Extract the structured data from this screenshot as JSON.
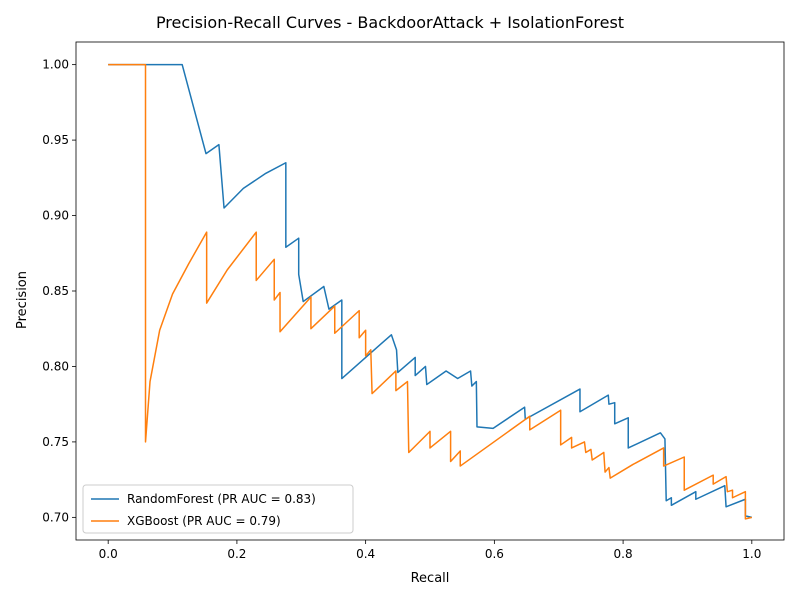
{
  "chart_data": {
    "type": "line",
    "title": "Precision-Recall Curves - BackdoorAttack + IsolationForest",
    "xlabel": "Recall",
    "ylabel": "Precision",
    "xlim": [
      -0.05,
      1.05
    ],
    "ylim": [
      0.685,
      1.015
    ],
    "xticks": [
      0.0,
      0.2,
      0.4,
      0.6,
      0.8,
      1.0
    ],
    "xtick_labels": [
      "0.0",
      "0.2",
      "0.4",
      "0.6",
      "0.8",
      "1.0"
    ],
    "yticks": [
      0.7,
      0.75,
      0.8,
      0.85,
      0.9,
      0.95,
      1.0
    ],
    "ytick_labels": [
      "0.70",
      "0.75",
      "0.80",
      "0.85",
      "0.90",
      "0.95",
      "1.00"
    ],
    "grid": false,
    "legend": {
      "position": "lower-left"
    },
    "series": [
      {
        "name": "RandomForest (PR AUC = 0.83)",
        "color": "#1f77b4",
        "points": [
          [
            0.0,
            1.0
          ],
          [
            0.115,
            1.0
          ],
          [
            0.152,
            0.941
          ],
          [
            0.172,
            0.947
          ],
          [
            0.18,
            0.905
          ],
          [
            0.21,
            0.918
          ],
          [
            0.245,
            0.928
          ],
          [
            0.276,
            0.935
          ],
          [
            0.276,
            0.879
          ],
          [
            0.296,
            0.885
          ],
          [
            0.296,
            0.861
          ],
          [
            0.303,
            0.843
          ],
          [
            0.335,
            0.853
          ],
          [
            0.343,
            0.838
          ],
          [
            0.363,
            0.844
          ],
          [
            0.363,
            0.792
          ],
          [
            0.44,
            0.821
          ],
          [
            0.448,
            0.811
          ],
          [
            0.45,
            0.796
          ],
          [
            0.477,
            0.806
          ],
          [
            0.477,
            0.794
          ],
          [
            0.493,
            0.8
          ],
          [
            0.495,
            0.788
          ],
          [
            0.525,
            0.797
          ],
          [
            0.543,
            0.792
          ],
          [
            0.563,
            0.797
          ],
          [
            0.565,
            0.787
          ],
          [
            0.572,
            0.79
          ],
          [
            0.573,
            0.76
          ],
          [
            0.598,
            0.759
          ],
          [
            0.647,
            0.773
          ],
          [
            0.648,
            0.765
          ],
          [
            0.733,
            0.785
          ],
          [
            0.733,
            0.77
          ],
          [
            0.777,
            0.781
          ],
          [
            0.778,
            0.775
          ],
          [
            0.787,
            0.776
          ],
          [
            0.787,
            0.762
          ],
          [
            0.808,
            0.766
          ],
          [
            0.808,
            0.746
          ],
          [
            0.858,
            0.756
          ],
          [
            0.865,
            0.752
          ],
          [
            0.867,
            0.711
          ],
          [
            0.875,
            0.713
          ],
          [
            0.875,
            0.708
          ],
          [
            0.913,
            0.717
          ],
          [
            0.913,
            0.712
          ],
          [
            0.958,
            0.721
          ],
          [
            0.96,
            0.707
          ],
          [
            0.99,
            0.712
          ],
          [
            0.99,
            0.701
          ],
          [
            1.0,
            0.7
          ]
        ]
      },
      {
        "name": "XGBoost (PR AUC = 0.79)",
        "color": "#ff7f0e",
        "points": [
          [
            0.0,
            1.0
          ],
          [
            0.058,
            1.0
          ],
          [
            0.058,
            0.75
          ],
          [
            0.065,
            0.79
          ],
          [
            0.08,
            0.824
          ],
          [
            0.1,
            0.848
          ],
          [
            0.125,
            0.868
          ],
          [
            0.153,
            0.889
          ],
          [
            0.153,
            0.842
          ],
          [
            0.185,
            0.864
          ],
          [
            0.23,
            0.889
          ],
          [
            0.23,
            0.857
          ],
          [
            0.258,
            0.871
          ],
          [
            0.258,
            0.844
          ],
          [
            0.267,
            0.849
          ],
          [
            0.267,
            0.823
          ],
          [
            0.315,
            0.846
          ],
          [
            0.315,
            0.825
          ],
          [
            0.352,
            0.84
          ],
          [
            0.352,
            0.822
          ],
          [
            0.39,
            0.837
          ],
          [
            0.39,
            0.819
          ],
          [
            0.4,
            0.824
          ],
          [
            0.4,
            0.807
          ],
          [
            0.408,
            0.811
          ],
          [
            0.41,
            0.782
          ],
          [
            0.447,
            0.797
          ],
          [
            0.447,
            0.784
          ],
          [
            0.465,
            0.79
          ],
          [
            0.467,
            0.743
          ],
          [
            0.5,
            0.757
          ],
          [
            0.5,
            0.746
          ],
          [
            0.532,
            0.757
          ],
          [
            0.532,
            0.737
          ],
          [
            0.547,
            0.744
          ],
          [
            0.547,
            0.734
          ],
          [
            0.655,
            0.767
          ],
          [
            0.655,
            0.758
          ],
          [
            0.703,
            0.771
          ],
          [
            0.703,
            0.748
          ],
          [
            0.72,
            0.753
          ],
          [
            0.72,
            0.746
          ],
          [
            0.74,
            0.75
          ],
          [
            0.742,
            0.743
          ],
          [
            0.75,
            0.745
          ],
          [
            0.752,
            0.738
          ],
          [
            0.77,
            0.743
          ],
          [
            0.772,
            0.73
          ],
          [
            0.778,
            0.733
          ],
          [
            0.78,
            0.726
          ],
          [
            0.815,
            0.735
          ],
          [
            0.863,
            0.746
          ],
          [
            0.863,
            0.734
          ],
          [
            0.895,
            0.74
          ],
          [
            0.895,
            0.718
          ],
          [
            0.94,
            0.728
          ],
          [
            0.94,
            0.722
          ],
          [
            0.96,
            0.727
          ],
          [
            0.962,
            0.717
          ],
          [
            0.97,
            0.718
          ],
          [
            0.97,
            0.713
          ],
          [
            0.99,
            0.717
          ],
          [
            0.99,
            0.699
          ],
          [
            1.0,
            0.7
          ]
        ]
      }
    ]
  }
}
